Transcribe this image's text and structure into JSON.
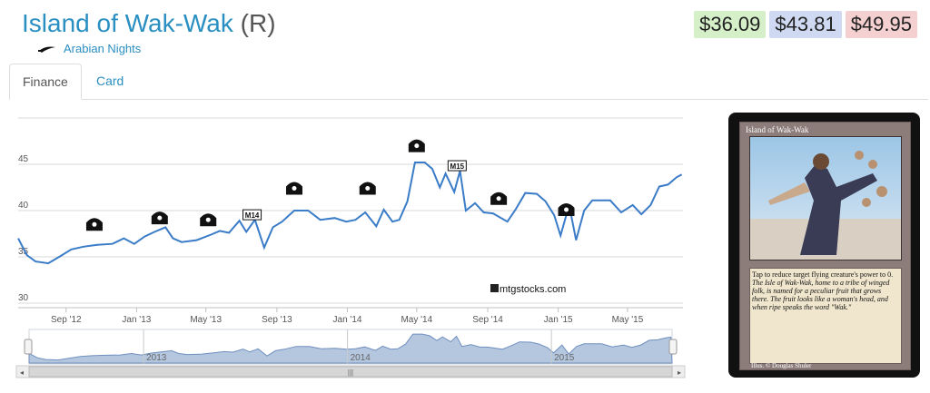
{
  "header": {
    "card_name": "Island of Wak-Wak",
    "rarity": "(R)",
    "set_name": "Arabian Nights",
    "set_icon": "scimitar-icon"
  },
  "prices": [
    {
      "label": "$36.09",
      "color": "#d5f0c8"
    },
    {
      "label": "$43.81",
      "color": "#cfdaf2"
    },
    {
      "label": "$49.95",
      "color": "#f5d0d0"
    }
  ],
  "tabs": [
    {
      "label": "Finance",
      "active": true
    },
    {
      "label": "Card",
      "active": false
    }
  ],
  "chart_data": {
    "type": "line",
    "watermark": "mtgstocks.com",
    "ylim": [
      30,
      50
    ],
    "yticks": [
      30,
      35,
      40,
      45
    ],
    "xticks": [
      "Sep '12",
      "Jan '13",
      "May '13",
      "Sep '13",
      "Jan '14",
      "May '14",
      "Sep '14",
      "Jan '15",
      "May '15"
    ],
    "navigator_labels": [
      "2013",
      "2014",
      "2015"
    ],
    "line_color": "#3a7cc7",
    "series": [
      {
        "values": [
          [
            "2012-06-10",
            37.0
          ],
          [
            "2012-06-25",
            35.2
          ],
          [
            "2012-07-10",
            34.5
          ],
          [
            "2012-08-01",
            34.3
          ],
          [
            "2012-08-20",
            35.0
          ],
          [
            "2012-09-10",
            35.8
          ],
          [
            "2012-10-01",
            36.1
          ],
          [
            "2012-10-25",
            36.3
          ],
          [
            "2012-11-20",
            36.4
          ],
          [
            "2012-12-10",
            37.0
          ],
          [
            "2012-12-28",
            36.4
          ],
          [
            "2013-01-15",
            37.2
          ],
          [
            "2013-02-01",
            37.7
          ],
          [
            "2013-02-20",
            38.2
          ],
          [
            "2013-03-05",
            37.0
          ],
          [
            "2013-03-20",
            36.6
          ],
          [
            "2013-04-15",
            36.8
          ],
          [
            "2013-05-10",
            37.4
          ],
          [
            "2013-05-25",
            37.8
          ],
          [
            "2013-06-10",
            37.6
          ],
          [
            "2013-06-28",
            38.9
          ],
          [
            "2013-07-10",
            37.7
          ],
          [
            "2013-07-25",
            39.0
          ],
          [
            "2013-08-10",
            36.0
          ],
          [
            "2013-08-25",
            38.2
          ],
          [
            "2013-09-10",
            38.8
          ],
          [
            "2013-10-01",
            40.0
          ],
          [
            "2013-10-25",
            40.0
          ],
          [
            "2013-11-15",
            39.0
          ],
          [
            "2013-12-10",
            39.2
          ],
          [
            "2013-12-30",
            38.8
          ],
          [
            "2014-01-15",
            39.0
          ],
          [
            "2014-02-01",
            39.8
          ],
          [
            "2014-02-20",
            38.3
          ],
          [
            "2014-03-05",
            40.1
          ],
          [
            "2014-03-20",
            38.8
          ],
          [
            "2014-04-01",
            39.0
          ],
          [
            "2014-04-15",
            41.0
          ],
          [
            "2014-04-28",
            45.2
          ],
          [
            "2014-05-15",
            45.2
          ],
          [
            "2014-05-28",
            44.5
          ],
          [
            "2014-06-10",
            42.5
          ],
          [
            "2014-06-20",
            44.0
          ],
          [
            "2014-07-05",
            42.0
          ],
          [
            "2014-07-15",
            44.3
          ],
          [
            "2014-07-25",
            40.0
          ],
          [
            "2014-08-10",
            40.8
          ],
          [
            "2014-08-25",
            39.8
          ],
          [
            "2014-09-10",
            39.7
          ],
          [
            "2014-10-05",
            38.8
          ],
          [
            "2014-10-20",
            40.2
          ],
          [
            "2014-11-05",
            41.9
          ],
          [
            "2014-11-25",
            41.8
          ],
          [
            "2014-12-10",
            41.0
          ],
          [
            "2014-12-25",
            39.5
          ],
          [
            "2015-01-05",
            37.3
          ],
          [
            "2015-01-20",
            40.6
          ],
          [
            "2015-02-01",
            36.8
          ],
          [
            "2015-02-15",
            40.0
          ],
          [
            "2015-03-01",
            41.1
          ],
          [
            "2015-04-01",
            41.1
          ],
          [
            "2015-04-20",
            39.8
          ],
          [
            "2015-05-10",
            40.6
          ],
          [
            "2015-05-25",
            39.6
          ],
          [
            "2015-06-10",
            40.6
          ],
          [
            "2015-06-25",
            42.6
          ],
          [
            "2015-07-10",
            42.8
          ],
          [
            "2015-07-25",
            43.6
          ],
          [
            "2015-08-03",
            43.9
          ]
        ]
      }
    ],
    "event_markers": [
      {
        "date": "2012-10-20",
        "price": 38.5,
        "icon": "set-symbol-crown-icon"
      },
      {
        "date": "2013-02-10",
        "price": 39.2,
        "icon": "set-symbol-wing-icon"
      },
      {
        "date": "2013-05-05",
        "price": 39.0,
        "icon": "set-symbol-temple-icon"
      },
      {
        "date": "2013-07-20",
        "price": 39.5,
        "label": "M14"
      },
      {
        "date": "2013-10-01",
        "price": 42.4,
        "icon": "set-symbol-trident-icon"
      },
      {
        "date": "2014-02-05",
        "price": 42.4,
        "icon": "set-symbol-trident-icon"
      },
      {
        "date": "2014-05-01",
        "price": 47.0,
        "icon": "set-symbol-trident-icon"
      },
      {
        "date": "2014-07-10",
        "price": 44.8,
        "label": "M15"
      },
      {
        "date": "2014-09-20",
        "price": 41.3,
        "icon": "set-symbol-khans-icon"
      },
      {
        "date": "2015-01-15",
        "price": 40.1,
        "icon": "set-symbol-dragon-icon"
      }
    ]
  },
  "card_image": {
    "title": "Island of Wak-Wak",
    "rules_text": "Tap to reduce target flying creature's power to 0.",
    "flavor_text": "The Isle of Wak-Wak, home to a tribe of winged folk, is named for a peculiar fruit that grows there. The fruit looks like a woman's head, and when ripe speaks the word \"Wak.\"",
    "artist": "Illus. © Douglas Shuler"
  }
}
